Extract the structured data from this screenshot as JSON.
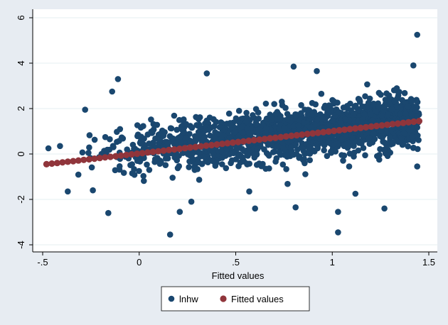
{
  "chart_data": {
    "type": "scatter",
    "title": "",
    "xlabel": "Fitted values",
    "ylabel": "",
    "xlim": [
      -0.5,
      1.5
    ],
    "ylim": [
      -4,
      6
    ],
    "x_ticks": [
      -0.5,
      0,
      0.5,
      1,
      1.5
    ],
    "x_tick_labels": [
      "-.5",
      "0",
      ".5",
      "1",
      "1.5"
    ],
    "y_ticks": [
      -4,
      -2,
      0,
      2,
      4,
      6
    ],
    "y_tick_labels": [
      "-4",
      "-2",
      "0",
      "2",
      "4",
      "6"
    ],
    "grid": "horizontal",
    "legend_position": "bottom",
    "series": [
      {
        "name": "lnhw",
        "kind": "scatter",
        "color": "#1a476f",
        "x_range": [
          -0.48,
          1.45
        ],
        "intercept": 0.2,
        "slope": 0.9,
        "spread": 0.55,
        "n_points": 1800,
        "outliers": [
          {
            "x": 1.44,
            "y": 5.25
          },
          {
            "x": -0.11,
            "y": 3.3
          },
          {
            "x": -0.28,
            "y": 1.95
          },
          {
            "x": 0.35,
            "y": 3.55
          },
          {
            "x": 0.8,
            "y": 3.85
          },
          {
            "x": 0.92,
            "y": 3.65
          },
          {
            "x": 1.42,
            "y": 3.9
          },
          {
            "x": 0.16,
            "y": -3.55
          },
          {
            "x": 1.03,
            "y": -3.45
          },
          {
            "x": -0.16,
            "y": -2.6
          },
          {
            "x": 0.21,
            "y": -2.55
          },
          {
            "x": 0.6,
            "y": -2.4
          },
          {
            "x": 0.81,
            "y": -2.35
          },
          {
            "x": 1.03,
            "y": -2.55
          },
          {
            "x": 1.27,
            "y": -2.4
          },
          {
            "x": 0.27,
            "y": -2.1
          },
          {
            "x": -0.37,
            "y": -1.65
          },
          {
            "x": -0.24,
            "y": -1.6
          },
          {
            "x": 0.57,
            "y": -1.65
          },
          {
            "x": 1.12,
            "y": -1.75
          },
          {
            "x": 1.44,
            "y": -0.55
          },
          {
            "x": -0.41,
            "y": 0.35
          },
          {
            "x": -0.47,
            "y": 0.25
          },
          {
            "x": -0.14,
            "y": 2.75
          }
        ]
      },
      {
        "name": "Fitted values",
        "kind": "fitted",
        "color": "#90353b",
        "x": [
          -0.48,
          1.45
        ],
        "y": [
          -0.45,
          1.45
        ]
      }
    ]
  }
}
